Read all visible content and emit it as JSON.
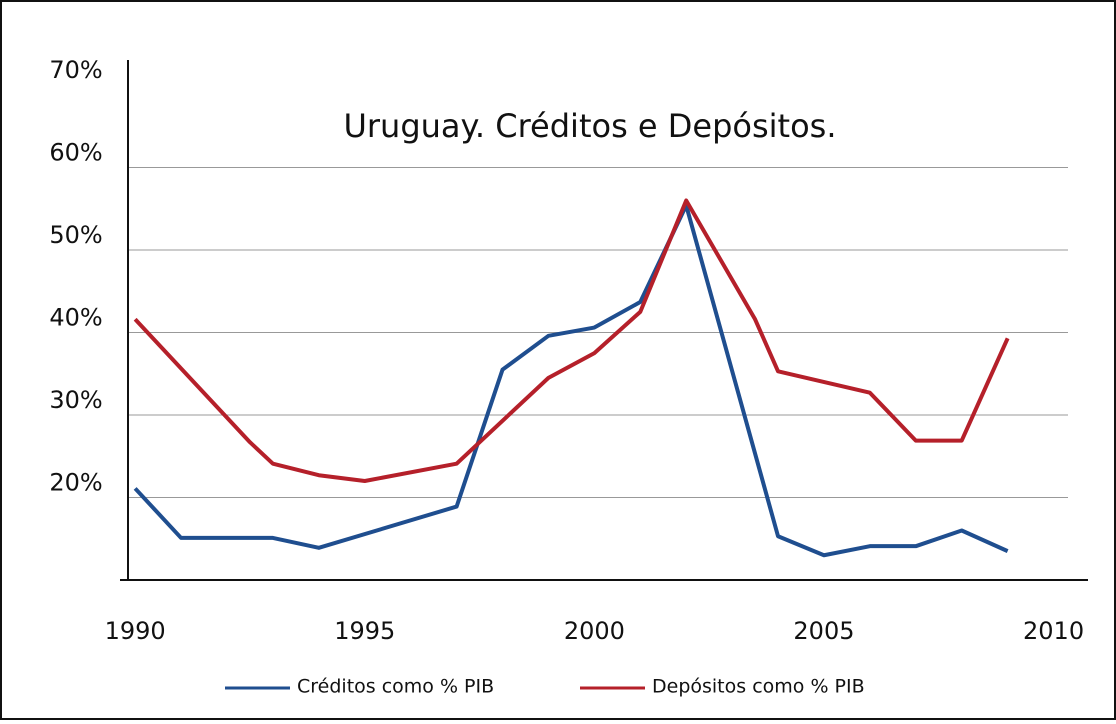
{
  "chart_data": {
    "type": "line",
    "title": "Uruguay. Créditos e Depósitos.",
    "series": [
      {
        "name": "Créditos como % PIB",
        "color": "#1f4e8f",
        "x": [
          1990,
          1991,
          1993,
          1994,
          1997,
          1998,
          1999,
          2000,
          2001,
          2002,
          2004,
          2005,
          2006,
          2007,
          2008,
          2009
        ],
        "values": [
          21.1,
          15.1,
          15.1,
          13.9,
          18.9,
          35.5,
          39.6,
          40.6,
          43.7,
          55.4,
          15.3,
          13.0,
          14.1,
          14.1,
          16.0,
          13.5
        ]
      },
      {
        "name": "Depósitos como % PIB",
        "color": "#b5202a",
        "x": [
          1990,
          1992.5,
          1993,
          1994,
          1995,
          1997,
          1999,
          2000,
          2001,
          2002,
          2003.5,
          2004,
          2006,
          2007,
          2008,
          2009
        ],
        "values": [
          41.6,
          26.7,
          24.1,
          22.7,
          22.0,
          24.1,
          34.5,
          37.5,
          42.5,
          56.0,
          41.6,
          35.3,
          32.7,
          26.9,
          26.9,
          39.3
        ]
      }
    ],
    "xlim": [
      1989.67,
      2010.75
    ],
    "xticks": [
      1990,
      1995,
      2000,
      2005,
      2010
    ],
    "ylim": [
      10,
      70
    ],
    "yticks": [
      {
        "value": 20,
        "label": "20%"
      },
      {
        "value": 30,
        "label": "30%"
      },
      {
        "value": 40,
        "label": "40%"
      },
      {
        "value": 50,
        "label": "50%"
      },
      {
        "value": 60,
        "label": "60%"
      },
      {
        "value": 70,
        "label": "70%"
      }
    ],
    "grid": true
  }
}
